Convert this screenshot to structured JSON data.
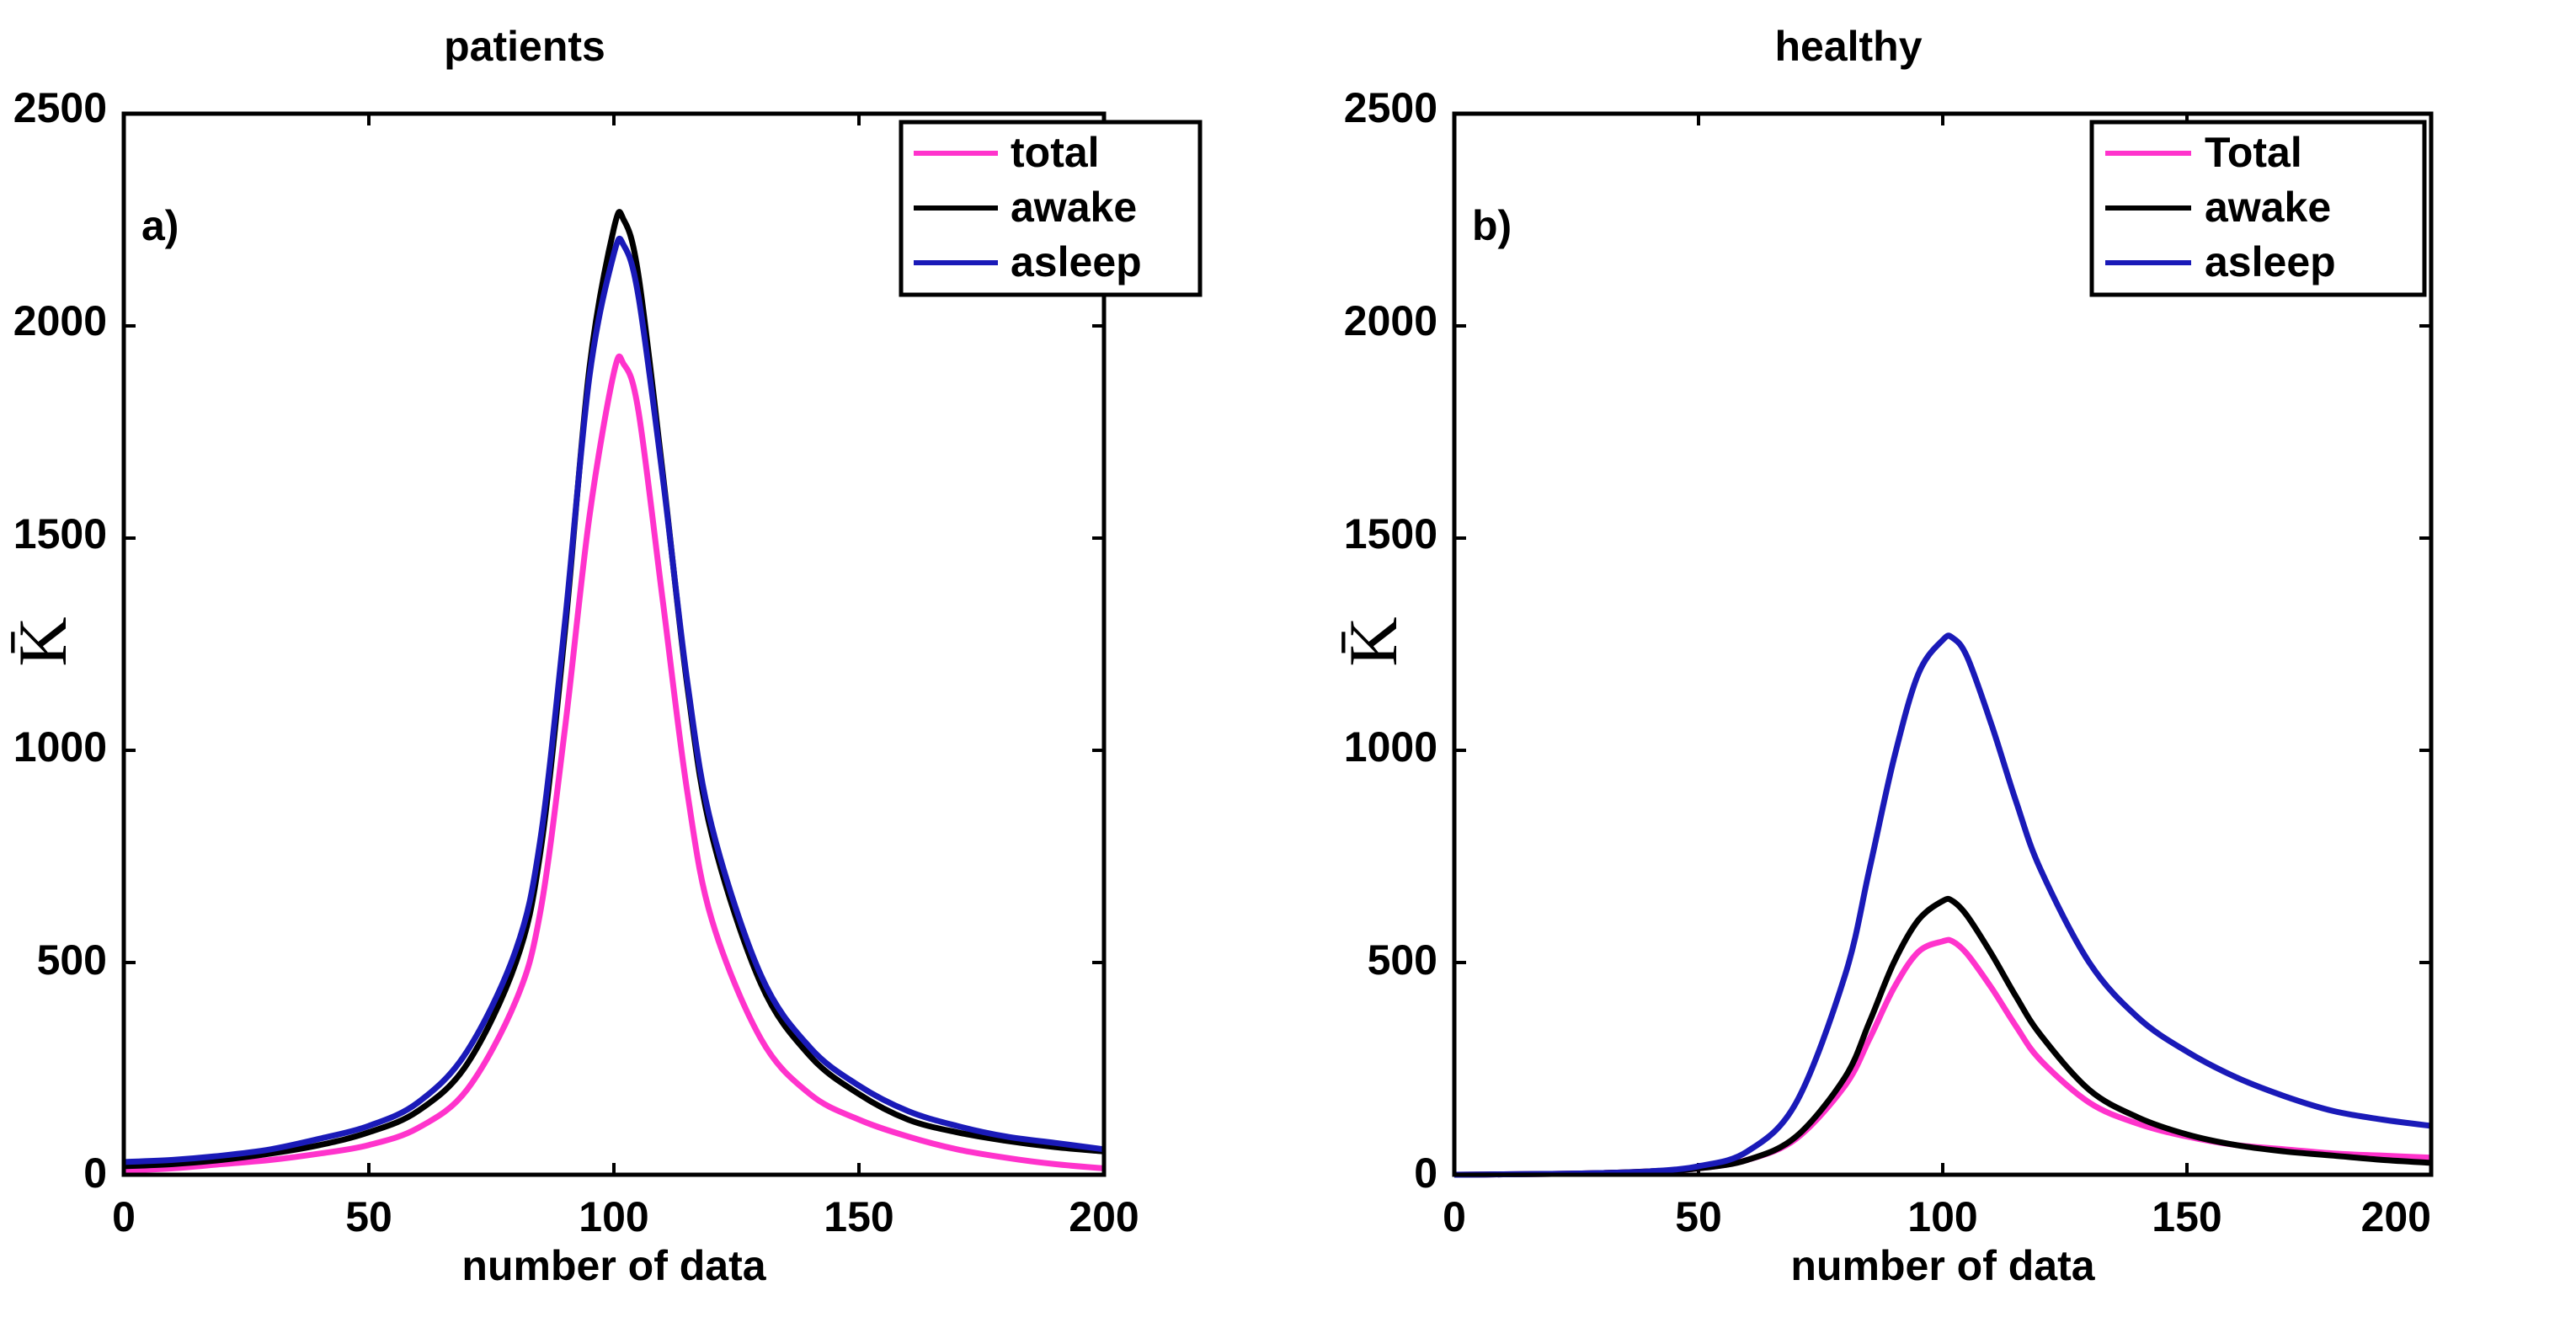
{
  "chart_data": [
    {
      "type": "line",
      "title": "patients",
      "panel_label": "a)",
      "xlabel": "number of data",
      "ylabel": "K̄",
      "xlim": [
        0,
        200
      ],
      "ylim": [
        0,
        2500
      ],
      "xticks": [
        0,
        50,
        100,
        150,
        200
      ],
      "yticks": [
        0,
        500,
        1000,
        1500,
        2000,
        2500
      ],
      "legend_position": "top-right",
      "series": [
        {
          "name": "total",
          "color": "#ff33cc",
          "x": [
            0,
            10,
            20,
            30,
            40,
            50,
            60,
            70,
            80,
            85,
            90,
            95,
            100,
            102,
            105,
            110,
            115,
            120,
            130,
            140,
            150,
            160,
            170,
            180,
            190,
            200
          ],
          "y": [
            10,
            15,
            25,
            35,
            50,
            70,
            110,
            200,
            410,
            620,
            1050,
            1550,
            1890,
            1910,
            1800,
            1350,
            900,
            600,
            320,
            190,
            130,
            90,
            60,
            40,
            25,
            15
          ]
        },
        {
          "name": "awake",
          "color": "#000000",
          "x": [
            0,
            10,
            20,
            30,
            40,
            50,
            60,
            70,
            80,
            85,
            90,
            95,
            100,
            102,
            105,
            110,
            115,
            120,
            130,
            140,
            150,
            160,
            170,
            180,
            190,
            200
          ],
          "y": [
            20,
            25,
            35,
            50,
            70,
            100,
            150,
            260,
            500,
            760,
            1280,
            1900,
            2230,
            2250,
            2120,
            1650,
            1150,
            800,
            450,
            280,
            190,
            130,
            100,
            80,
            65,
            55
          ]
        },
        {
          "name": "asleep",
          "color": "#1a1ab8",
          "x": [
            0,
            10,
            20,
            30,
            40,
            50,
            60,
            70,
            80,
            85,
            90,
            95,
            100,
            102,
            105,
            110,
            115,
            120,
            130,
            140,
            150,
            160,
            170,
            180,
            190,
            200
          ],
          "y": [
            30,
            35,
            45,
            60,
            85,
            115,
            170,
            290,
            530,
            790,
            1300,
            1880,
            2170,
            2190,
            2070,
            1640,
            1160,
            820,
            470,
            300,
            210,
            150,
            115,
            90,
            75,
            60
          ]
        }
      ]
    },
    {
      "type": "line",
      "title": "healthy",
      "panel_label": "b)",
      "xlabel": "number of data",
      "ylabel": "K̄",
      "xlim": [
        0,
        200
      ],
      "ylim": [
        0,
        2500
      ],
      "xticks": [
        0,
        50,
        100,
        150,
        200
      ],
      "yticks": [
        0,
        500,
        1000,
        1500,
        2000,
        2500
      ],
      "legend_position": "top-right",
      "series": [
        {
          "name": "Total",
          "color": "#ff33cc",
          "x": [
            0,
            10,
            20,
            30,
            40,
            50,
            60,
            70,
            80,
            85,
            90,
            95,
            100,
            102,
            105,
            110,
            115,
            120,
            130,
            140,
            150,
            160,
            170,
            180,
            190,
            200
          ],
          "y": [
            0,
            1,
            2,
            4,
            8,
            15,
            35,
            85,
            210,
            320,
            440,
            525,
            550,
            550,
            520,
            440,
            350,
            270,
            170,
            120,
            90,
            70,
            60,
            50,
            45,
            40
          ]
        },
        {
          "name": "awake",
          "color": "#000000",
          "x": [
            0,
            10,
            20,
            30,
            40,
            50,
            60,
            70,
            80,
            85,
            90,
            95,
            100,
            102,
            105,
            110,
            115,
            120,
            130,
            140,
            150,
            160,
            170,
            180,
            190,
            200
          ],
          "y": [
            0,
            1,
            2,
            4,
            8,
            15,
            35,
            90,
            230,
            360,
            500,
            600,
            645,
            645,
            610,
            520,
            420,
            330,
            200,
            135,
            95,
            70,
            55,
            45,
            35,
            28
          ]
        },
        {
          "name": "asleep",
          "color": "#1a1ab8",
          "x": [
            0,
            10,
            20,
            30,
            40,
            50,
            60,
            70,
            80,
            85,
            90,
            95,
            100,
            102,
            105,
            110,
            115,
            120,
            130,
            140,
            150,
            160,
            170,
            180,
            190,
            200
          ],
          "y": [
            0,
            1,
            2,
            4,
            8,
            20,
            55,
            170,
            470,
            720,
            980,
            1180,
            1260,
            1265,
            1220,
            1060,
            880,
            720,
            500,
            370,
            290,
            230,
            185,
            150,
            130,
            115
          ]
        }
      ]
    }
  ]
}
